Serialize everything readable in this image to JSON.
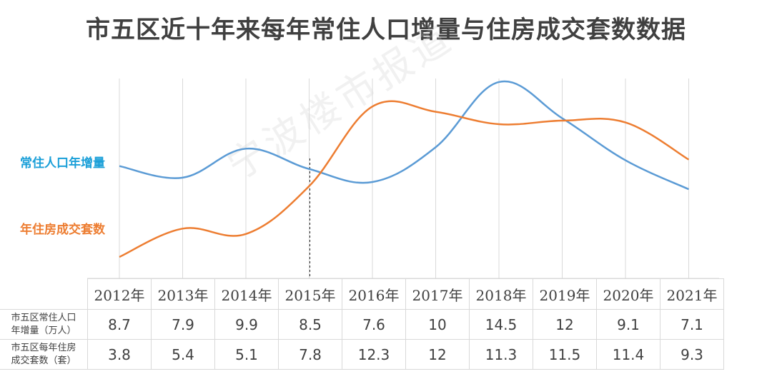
{
  "title": "市五区近十年来每年常住人口增量与住房成交套数数据",
  "watermark": "宁波楼市报道",
  "labels": {
    "population": "常住人口年增量",
    "housing": "年住房成交套数"
  },
  "table": {
    "row1_label_a": "市五区常住人口",
    "row1_label_b": "年增量（万人）",
    "row2_label_a": "市五区每年住房",
    "row2_label_b": "成交套数（套）"
  },
  "colors": {
    "population": "#5b9bd5",
    "housing": "#ed7d31",
    "population_label": "#1a9fd8"
  },
  "chart_data": {
    "type": "line",
    "categories": [
      "2012年",
      "2013年",
      "2014年",
      "2015年",
      "2016年",
      "2017年",
      "2018年",
      "2019年",
      "2020年",
      "2021年"
    ],
    "series": [
      {
        "name": "常住人口年增量",
        "values": [
          8.7,
          7.9,
          9.9,
          8.5,
          7.6,
          10,
          14.5,
          12,
          9.1,
          7.1
        ]
      },
      {
        "name": "年住房成交套数",
        "values": [
          3.8,
          5.4,
          5.1,
          7.8,
          12.3,
          12,
          11.3,
          11.5,
          11.4,
          9.3
        ]
      }
    ],
    "y_axis_visible": false,
    "grid": "vertical",
    "marker_line_at": "2015年"
  }
}
